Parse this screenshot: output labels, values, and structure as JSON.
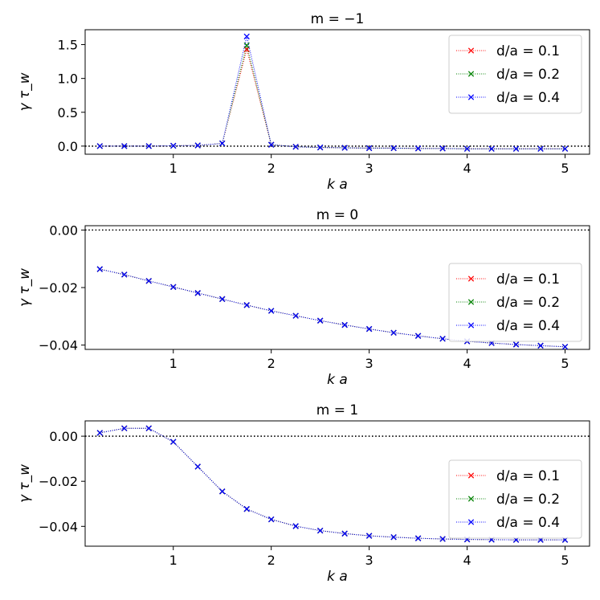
{
  "chart_data": [
    {
      "type": "line",
      "title": "m = −1",
      "xlabel": "k a",
      "ylabel": "γ τ_w",
      "xlim": [
        0.1,
        5.25
      ],
      "ylim": [
        -0.12,
        1.72
      ],
      "xticks": [
        1,
        2,
        3,
        4,
        5
      ],
      "xtick_labels": [
        "1",
        "2",
        "3",
        "4",
        "5"
      ],
      "yticks": [
        0.0,
        0.5,
        1.0,
        1.5
      ],
      "ytick_labels": [
        "0.0",
        "0.5",
        "1.0",
        "1.5"
      ],
      "reference_line_y": 0,
      "legend_position": "upper-right",
      "x": [
        0.25,
        0.5,
        0.75,
        1.0,
        1.25,
        1.5,
        1.75,
        2.0,
        2.25,
        2.5,
        2.75,
        3.0,
        3.25,
        3.5,
        3.75,
        4.0,
        4.25,
        4.5,
        4.75,
        5.0
      ],
      "series": [
        {
          "name": "d/a = 0.1",
          "color": "#ff0000",
          "values": [
            0.0,
            0.0,
            0.0,
            0.005,
            0.01,
            0.04,
            1.43,
            0.02,
            -0.01,
            -0.02,
            -0.025,
            -0.03,
            -0.03,
            -0.035,
            -0.035,
            -0.04,
            -0.04,
            -0.04,
            -0.04,
            -0.04
          ]
        },
        {
          "name": "d/a = 0.2",
          "color": "#008000",
          "values": [
            0.0,
            0.0,
            0.0,
            0.005,
            0.01,
            0.04,
            1.49,
            0.02,
            -0.01,
            -0.02,
            -0.025,
            -0.03,
            -0.03,
            -0.035,
            -0.035,
            -0.04,
            -0.04,
            -0.04,
            -0.04,
            -0.04
          ]
        },
        {
          "name": "d/a = 0.4",
          "color": "#0000ff",
          "values": [
            0.0,
            0.0,
            0.0,
            0.005,
            0.01,
            0.04,
            1.62,
            0.02,
            -0.01,
            -0.02,
            -0.025,
            -0.03,
            -0.03,
            -0.035,
            -0.035,
            -0.04,
            -0.04,
            -0.04,
            -0.04,
            -0.04
          ]
        }
      ]
    },
    {
      "type": "line",
      "title": "m = 0",
      "xlabel": "k a",
      "ylabel": "γ τ_w",
      "xlim": [
        0.1,
        5.25
      ],
      "ylim": [
        -0.0415,
        0.0015
      ],
      "xticks": [
        1,
        2,
        3,
        4,
        5
      ],
      "xtick_labels": [
        "1",
        "2",
        "3",
        "4",
        "5"
      ],
      "yticks": [
        0.0,
        -0.02,
        -0.04
      ],
      "ytick_labels": [
        "0.00",
        "−0.02",
        "−0.04"
      ],
      "reference_line_y": 0,
      "legend_position": "lower-right",
      "x": [
        0.25,
        0.5,
        0.75,
        1.0,
        1.25,
        1.5,
        1.75,
        2.0,
        2.25,
        2.5,
        2.75,
        3.0,
        3.25,
        3.5,
        3.75,
        4.0,
        4.25,
        4.5,
        4.75,
        5.0
      ],
      "series": [
        {
          "name": "d/a = 0.1",
          "color": "#ff0000",
          "values": [
            -0.0136,
            -0.0155,
            -0.0177,
            -0.0198,
            -0.0219,
            -0.024,
            -0.0261,
            -0.0281,
            -0.0298,
            -0.0315,
            -0.033,
            -0.0344,
            -0.0357,
            -0.0368,
            -0.0378,
            -0.0387,
            -0.0393,
            -0.0398,
            -0.0402,
            -0.0406
          ]
        },
        {
          "name": "d/a = 0.2",
          "color": "#008000",
          "values": [
            -0.0136,
            -0.0155,
            -0.0177,
            -0.0198,
            -0.0219,
            -0.024,
            -0.0261,
            -0.0281,
            -0.0298,
            -0.0315,
            -0.033,
            -0.0344,
            -0.0357,
            -0.0368,
            -0.0378,
            -0.0387,
            -0.0393,
            -0.0398,
            -0.0402,
            -0.0406
          ]
        },
        {
          "name": "d/a = 0.4",
          "color": "#0000ff",
          "values": [
            -0.0136,
            -0.0155,
            -0.0177,
            -0.0198,
            -0.0219,
            -0.024,
            -0.0261,
            -0.0281,
            -0.0298,
            -0.0315,
            -0.033,
            -0.0344,
            -0.0357,
            -0.0368,
            -0.0378,
            -0.0387,
            -0.0393,
            -0.0398,
            -0.0402,
            -0.0406
          ]
        }
      ]
    },
    {
      "type": "line",
      "title": "m = 1",
      "xlabel": "k a",
      "ylabel": "γ τ_w",
      "xlim": [
        0.1,
        5.25
      ],
      "ylim": [
        -0.0488,
        0.0068
      ],
      "xticks": [
        1,
        2,
        3,
        4,
        5
      ],
      "xtick_labels": [
        "1",
        "2",
        "3",
        "4",
        "5"
      ],
      "yticks": [
        0.0,
        -0.02,
        -0.04
      ],
      "ytick_labels": [
        "0.00",
        "−0.02",
        "−0.04"
      ],
      "reference_line_y": 0,
      "legend_position": "lower-right",
      "x": [
        0.25,
        0.5,
        0.75,
        1.0,
        1.25,
        1.5,
        1.75,
        2.0,
        2.25,
        2.5,
        2.75,
        3.0,
        3.25,
        3.5,
        3.75,
        4.0,
        4.25,
        4.5,
        4.75,
        5.0
      ],
      "series": [
        {
          "name": "d/a = 0.1",
          "color": "#ff0000",
          "values": [
            0.0015,
            0.0035,
            0.0035,
            -0.0025,
            -0.0135,
            -0.0245,
            -0.0323,
            -0.0369,
            -0.0399,
            -0.0419,
            -0.0432,
            -0.0442,
            -0.0448,
            -0.0453,
            -0.0456,
            -0.0458,
            -0.0459,
            -0.046,
            -0.046,
            -0.046
          ]
        },
        {
          "name": "d/a = 0.2",
          "color": "#008000",
          "values": [
            0.0015,
            0.0035,
            0.0035,
            -0.0025,
            -0.0135,
            -0.0245,
            -0.0323,
            -0.0369,
            -0.0399,
            -0.0419,
            -0.0432,
            -0.0442,
            -0.0448,
            -0.0453,
            -0.0456,
            -0.0458,
            -0.0459,
            -0.046,
            -0.046,
            -0.046
          ]
        },
        {
          "name": "d/a = 0.4",
          "color": "#0000ff",
          "values": [
            0.0015,
            0.0035,
            0.0035,
            -0.0025,
            -0.0135,
            -0.0245,
            -0.0323,
            -0.0369,
            -0.0399,
            -0.0419,
            -0.0432,
            -0.0442,
            -0.0448,
            -0.0453,
            -0.0456,
            -0.0458,
            -0.0459,
            -0.046,
            -0.046,
            -0.046
          ]
        }
      ]
    }
  ]
}
